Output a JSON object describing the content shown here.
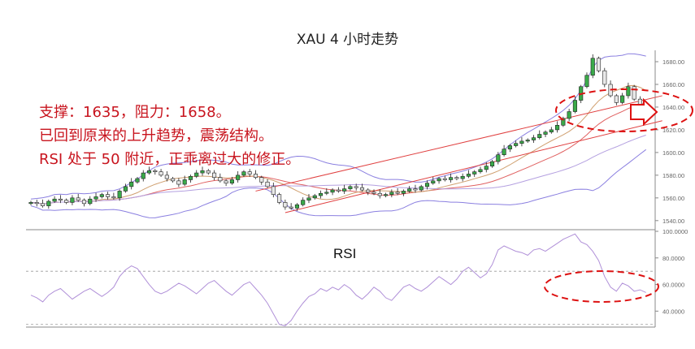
{
  "chart_data": [
    {
      "type": "candlestick",
      "title": "XAU 4 小时走势",
      "yaxis_ticks": [
        "1540.00",
        "1560.00",
        "1580.00",
        "1600.00",
        "1620.00",
        "1640.00",
        "1660.00",
        "1680.00"
      ],
      "ylim": [
        1532,
        1690
      ],
      "close": [
        1556,
        1555,
        1553,
        1557,
        1559,
        1558,
        1556,
        1560,
        1558,
        1555,
        1559,
        1561,
        1563,
        1561,
        1560,
        1566,
        1570,
        1574,
        1577,
        1582,
        1584,
        1583,
        1580,
        1577,
        1575,
        1572,
        1576,
        1579,
        1582,
        1584,
        1582,
        1578,
        1575,
        1573,
        1576,
        1580,
        1583,
        1581,
        1578,
        1574,
        1570,
        1563,
        1556,
        1552,
        1551,
        1554,
        1558,
        1560,
        1562,
        1564,
        1565,
        1567,
        1566,
        1568,
        1570,
        1569,
        1567,
        1565,
        1564,
        1562,
        1563,
        1565,
        1564,
        1566,
        1568,
        1567,
        1570,
        1573,
        1575,
        1577,
        1576,
        1578,
        1577,
        1579,
        1581,
        1583,
        1585,
        1588,
        1592,
        1598,
        1603,
        1606,
        1608,
        1610,
        1611,
        1613,
        1616,
        1618,
        1620,
        1624,
        1630,
        1636,
        1646,
        1658,
        1668,
        1683,
        1672,
        1660,
        1650,
        1644,
        1650,
        1658,
        1647,
        1642,
        1640
      ],
      "support_levels": [
        1635,
        1658
      ],
      "annotations": [
        "支撑：1635，阻力：1658。",
        "已回到原来的上升趋势，震荡结构。",
        "RSI 处于 50 附近，正乖离过大的修正。"
      ]
    },
    {
      "type": "line",
      "title": "RSI",
      "yaxis_ticks": [
        "40.0000",
        "60.0000",
        "80.0000",
        "100.0000"
      ],
      "ylim": [
        28,
        100
      ],
      "reference_lines": [
        30,
        70
      ],
      "series": [
        {
          "values": [
            52,
            50,
            47,
            52,
            55,
            57,
            53,
            49,
            52,
            55,
            57,
            54,
            51,
            54,
            58,
            66,
            71,
            74,
            72,
            66,
            60,
            55,
            53,
            55,
            58,
            61,
            59,
            56,
            53,
            57,
            61,
            63,
            59,
            55,
            52,
            56,
            60,
            62,
            57,
            52,
            46,
            38,
            30,
            29,
            33,
            40,
            46,
            51,
            53,
            57,
            55,
            58,
            56,
            60,
            57,
            52,
            49,
            53,
            58,
            55,
            50,
            48,
            53,
            58,
            60,
            57,
            55,
            58,
            62,
            66,
            63,
            60,
            64,
            70,
            73,
            69,
            65,
            68,
            75,
            86,
            89,
            87,
            85,
            84,
            82,
            86,
            87,
            85,
            88,
            91,
            94,
            96,
            98,
            92,
            90,
            85,
            78,
            66,
            58,
            55,
            61,
            59,
            55,
            56,
            54
          ]
        }
      ]
    }
  ]
}
